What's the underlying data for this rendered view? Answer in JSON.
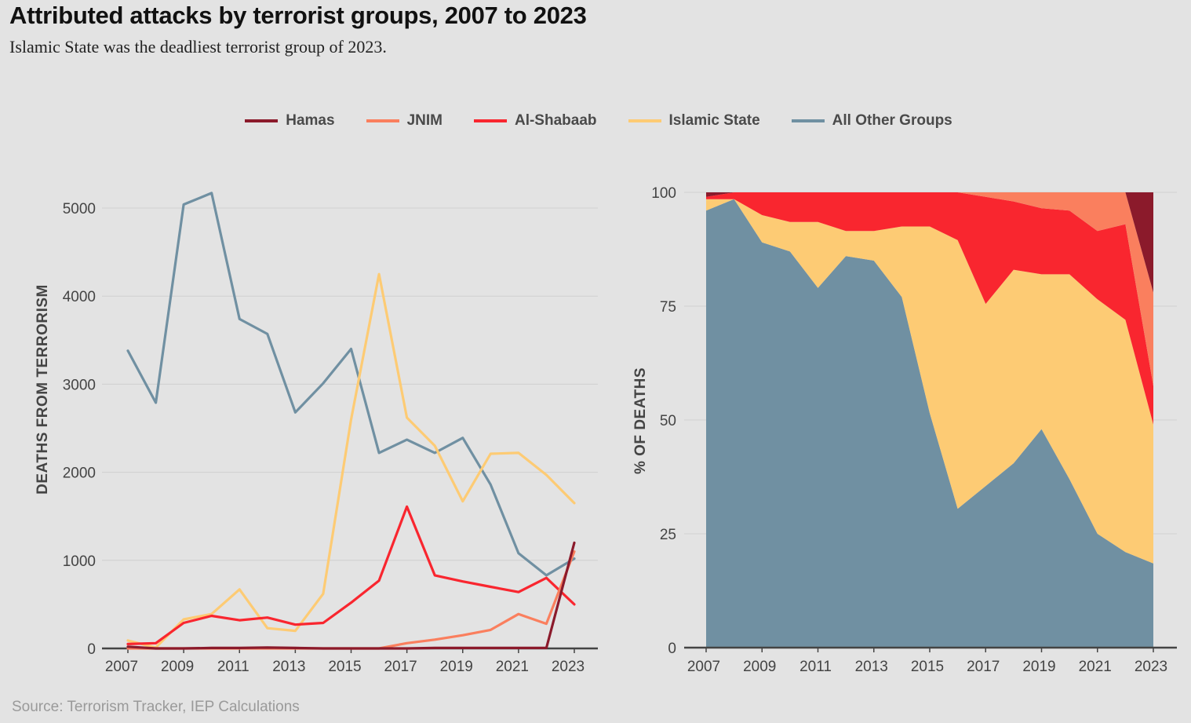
{
  "header": {
    "title": "Attributed attacks by terrorist groups, 2007 to 2023",
    "subtitle": "Islamic State was the deadliest terrorist group of 2023."
  },
  "source": "Source: Terrorism Tracker,  IEP Calculations",
  "legend": [
    {
      "name": "Hamas",
      "color": "#8b1a2b"
    },
    {
      "name": "JNIM",
      "color": "#fa7f5e"
    },
    {
      "name": "Al-Shabaab",
      "color": "#f9262f"
    },
    {
      "name": "Islamic State",
      "color": "#fdcb74"
    },
    {
      "name": "All Other Groups",
      "color": "#7090a2"
    }
  ],
  "chart_data": [
    {
      "type": "line",
      "ylabel": "DEATHS FROM TERRORISM",
      "xlabel": "",
      "ylim": [
        0,
        5200
      ],
      "yticks": [
        "0",
        "1000",
        "2000",
        "3000",
        "4000",
        "5000"
      ],
      "xticks": [
        "2007",
        "2009",
        "2011",
        "2013",
        "2015",
        "2017",
        "2019",
        "2021",
        "2023"
      ],
      "x": [
        2007,
        2008,
        2009,
        2010,
        2011,
        2012,
        2013,
        2014,
        2015,
        2016,
        2017,
        2018,
        2019,
        2020,
        2021,
        2022,
        2023
      ],
      "series": [
        {
          "name": "All Other Groups",
          "color": "#7090a2",
          "values": [
            3380,
            2790,
            5040,
            5170,
            3740,
            3570,
            2680,
            3010,
            3400,
            2220,
            2370,
            2220,
            2390,
            1860,
            1080,
            830,
            1020
          ]
        },
        {
          "name": "Islamic State",
          "color": "#fdcb74",
          "values": [
            90,
            10,
            330,
            390,
            670,
            230,
            200,
            620,
            2600,
            4250,
            2620,
            2300,
            1670,
            2210,
            2220,
            1970,
            1650
          ]
        },
        {
          "name": "Al-Shabaab",
          "color": "#f9262f",
          "values": [
            50,
            60,
            290,
            370,
            320,
            350,
            270,
            290,
            520,
            770,
            1610,
            830,
            760,
            700,
            640,
            800,
            500
          ]
        },
        {
          "name": "JNIM",
          "color": "#fa7f5e",
          "values": [
            0,
            0,
            0,
            0,
            0,
            0,
            0,
            0,
            0,
            0,
            60,
            100,
            150,
            210,
            390,
            280,
            1100
          ]
        },
        {
          "name": "Hamas",
          "color": "#8b1a2b",
          "values": [
            20,
            0,
            0,
            5,
            5,
            10,
            5,
            0,
            0,
            0,
            0,
            5,
            5,
            5,
            5,
            5,
            1200
          ]
        }
      ]
    },
    {
      "type": "area",
      "stacked": true,
      "ylabel": "% OF DEATHS",
      "xlabel": "",
      "ylim": [
        0,
        100
      ],
      "yticks": [
        "0",
        "25",
        "50",
        "75",
        "100"
      ],
      "xticks": [
        "2007",
        "2009",
        "2011",
        "2013",
        "2015",
        "2017",
        "2019",
        "2021",
        "2023"
      ],
      "x": [
        2007,
        2008,
        2009,
        2010,
        2011,
        2012,
        2013,
        2014,
        2015,
        2016,
        2017,
        2018,
        2019,
        2020,
        2021,
        2022,
        2023
      ],
      "series": [
        {
          "name": "All Other Groups",
          "color": "#7090a2",
          "values": [
            96,
            98.5,
            89,
            87,
            79,
            86,
            85,
            77,
            51.5,
            30.5,
            35.5,
            40.5,
            48,
            37,
            25,
            21,
            18.5
          ]
        },
        {
          "name": "Islamic State",
          "color": "#fdcb74",
          "values": [
            2.5,
            0,
            6,
            6.5,
            14.5,
            5.5,
            6.5,
            15.5,
            41,
            59,
            40,
            42.5,
            34,
            45,
            51.5,
            51,
            30.5
          ]
        },
        {
          "name": "Al-Shabaab",
          "color": "#f9262f",
          "values": [
            0.5,
            1.5,
            5,
            6.5,
            6.5,
            8.5,
            8.5,
            7.5,
            7.5,
            10.5,
            23.5,
            15,
            14.5,
            14,
            15,
            21,
            8.5
          ]
        },
        {
          "name": "JNIM",
          "color": "#fa7f5e",
          "values": [
            0,
            0,
            0,
            0,
            0,
            0,
            0,
            0,
            0,
            0,
            1,
            2,
            3.5,
            4,
            8.5,
            7,
            20.5
          ]
        },
        {
          "name": "Hamas",
          "color": "#8b1a2b",
          "values": [
            1,
            0,
            0,
            0,
            0,
            0,
            0,
            0,
            0,
            0,
            0,
            0,
            0,
            0,
            0,
            0,
            22
          ]
        }
      ]
    }
  ]
}
